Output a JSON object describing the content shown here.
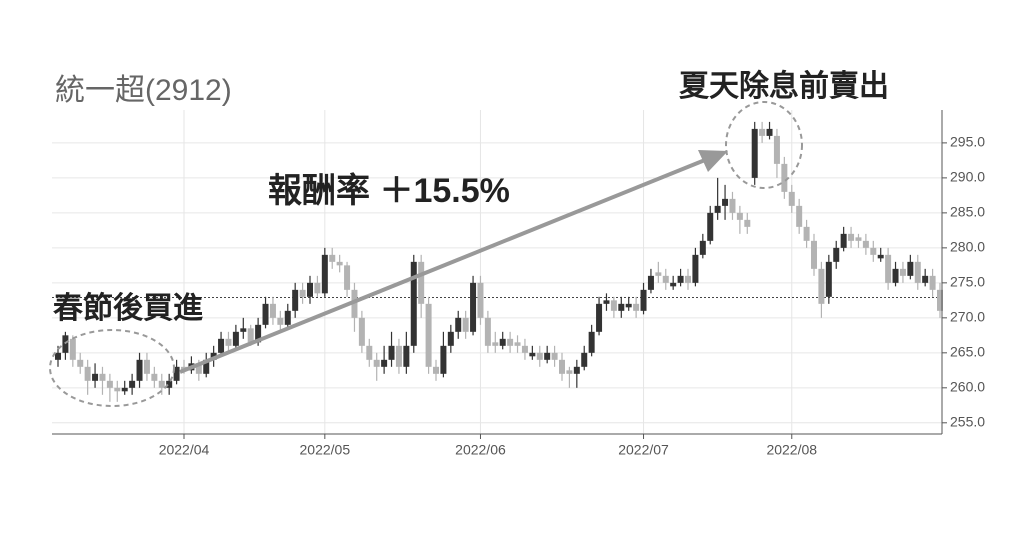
{
  "chart_data": {
    "type": "candlestick",
    "title": "統一超(2912)",
    "annotations": {
      "buy": "春節後買進",
      "return": "報酬率 ＋15.5%",
      "sell": "夏天除息前賣出"
    },
    "categories": [
      null,
      null,
      null,
      null,
      null,
      null,
      null,
      null,
      null,
      null,
      null,
      null,
      null,
      null,
      null,
      null,
      null,
      "2022/04",
      null,
      null,
      null,
      null,
      null,
      null,
      null,
      null,
      null,
      null,
      null,
      null,
      null,
      null,
      null,
      null,
      null,
      null,
      "2022/05",
      null,
      null,
      null,
      null,
      null,
      null,
      null,
      null,
      null,
      null,
      null,
      null,
      null,
      null,
      null,
      null,
      null,
      null,
      null,
      null,
      "2022/06",
      null,
      null,
      null,
      null,
      null,
      null,
      null,
      null,
      null,
      null,
      null,
      null,
      null,
      null,
      null,
      null,
      null,
      null,
      null,
      null,
      null,
      "2022/07",
      null,
      null,
      null,
      null,
      null,
      null,
      null,
      null,
      null,
      null,
      null,
      null,
      null,
      null,
      null,
      null,
      null,
      null,
      null,
      "2022/08",
      null,
      null,
      null,
      null,
      null,
      null,
      null,
      null,
      null,
      null,
      null,
      null,
      null,
      null,
      null,
      null,
      null,
      null,
      null,
      null
    ],
    "ohlc": [
      [
        264,
        266,
        263,
        265
      ],
      [
        265,
        268,
        264,
        267.5
      ],
      [
        267,
        267.5,
        263,
        264
      ],
      [
        264,
        265,
        262,
        263
      ],
      [
        263,
        264,
        259,
        261
      ],
      [
        261,
        263.5,
        260,
        262
      ],
      [
        262,
        263,
        259,
        261
      ],
      [
        261,
        262,
        258,
        260
      ],
      [
        260,
        261,
        258,
        259.5
      ],
      [
        259.5,
        261,
        259,
        260
      ],
      [
        260,
        262,
        259,
        261
      ],
      [
        261,
        265,
        260,
        264
      ],
      [
        264,
        265,
        261,
        262
      ],
      [
        262,
        263,
        260,
        261
      ],
      [
        261,
        262,
        259,
        260
      ],
      [
        260,
        262,
        259,
        261
      ],
      [
        261,
        264,
        260.5,
        263
      ],
      [
        263,
        264,
        262,
        262.5
      ],
      [
        262.5,
        264.5,
        262,
        263.5
      ],
      [
        263.5,
        264,
        261,
        262
      ],
      [
        262,
        265,
        261.5,
        264
      ],
      [
        264,
        266,
        263,
        265
      ],
      [
        265,
        268,
        264.5,
        267
      ],
      [
        267,
        268,
        265,
        266
      ],
      [
        266,
        269,
        265.5,
        268
      ],
      [
        268,
        270,
        267,
        268.5
      ],
      [
        268.5,
        269,
        266,
        266.5
      ],
      [
        266.5,
        270,
        266,
        269
      ],
      [
        269,
        273,
        268.5,
        272
      ],
      [
        272,
        273,
        269,
        270
      ],
      [
        270,
        271,
        268,
        269
      ],
      [
        269,
        272,
        268.5,
        271
      ],
      [
        271,
        275,
        270,
        274
      ],
      [
        274,
        275,
        272,
        273
      ],
      [
        273,
        276,
        272,
        275
      ],
      [
        275,
        276,
        273,
        273.5
      ],
      [
        273.5,
        280,
        273,
        279
      ],
      [
        279,
        280,
        277,
        278
      ],
      [
        278,
        279,
        276.5,
        277.5
      ],
      [
        277.5,
        278,
        273,
        274
      ],
      [
        274,
        275,
        268,
        270
      ],
      [
        270,
        271,
        265,
        266
      ],
      [
        266,
        267,
        263,
        264
      ],
      [
        264,
        265,
        261,
        263
      ],
      [
        263,
        266,
        262,
        264
      ],
      [
        264,
        268,
        263,
        266
      ],
      [
        266,
        267,
        262,
        263
      ],
      [
        263,
        268,
        262,
        266
      ],
      [
        266,
        279,
        265,
        278
      ],
      [
        278,
        279,
        270,
        272
      ],
      [
        272,
        273,
        262,
        263
      ],
      [
        263,
        264,
        261,
        262
      ],
      [
        262,
        268,
        261.5,
        266
      ],
      [
        266,
        269,
        265,
        268
      ],
      [
        268,
        271,
        267,
        270
      ],
      [
        270,
        271,
        267,
        268
      ],
      [
        268,
        276,
        267.5,
        275
      ],
      [
        275,
        276,
        269,
        270
      ],
      [
        270,
        271,
        265,
        266
      ],
      [
        266.5,
        268,
        265,
        266
      ],
      [
        266,
        268,
        265.5,
        267
      ],
      [
        267,
        268,
        265,
        266
      ],
      [
        266.5,
        267.5,
        265,
        266
      ],
      [
        266,
        267,
        264,
        265
      ],
      [
        264.5,
        266,
        264,
        265
      ],
      [
        265,
        266,
        263,
        264
      ],
      [
        264,
        266,
        263.5,
        265
      ],
      [
        265,
        266,
        263,
        264
      ],
      [
        264,
        265,
        261,
        262
      ],
      [
        262.5,
        263,
        260,
        262
      ],
      [
        262,
        264,
        260,
        263
      ],
      [
        263,
        266,
        262.5,
        265
      ],
      [
        265,
        269,
        264.5,
        268
      ],
      [
        268,
        273,
        267.5,
        272
      ],
      [
        272,
        273.5,
        271,
        272.5
      ],
      [
        272.5,
        273,
        270,
        271
      ],
      [
        271,
        273,
        270,
        272
      ],
      [
        271.5,
        273,
        271,
        272
      ],
      [
        272,
        273,
        270,
        271
      ],
      [
        271,
        275,
        270.5,
        274
      ],
      [
        274,
        277,
        273.5,
        276
      ],
      [
        276.5,
        278,
        275,
        276
      ],
      [
        276,
        277,
        274,
        275
      ],
      [
        274.5,
        276,
        274,
        275
      ],
      [
        275,
        277,
        274.5,
        276
      ],
      [
        276,
        277,
        274,
        275
      ],
      [
        275,
        280,
        274.5,
        279
      ],
      [
        279,
        282,
        278.5,
        281
      ],
      [
        281,
        286,
        280.5,
        285
      ],
      [
        285,
        290,
        284,
        286
      ],
      [
        286,
        289,
        284,
        287
      ],
      [
        287,
        288,
        284,
        285
      ],
      [
        285,
        286,
        282,
        284
      ],
      [
        284,
        285,
        282,
        283
      ],
      [
        290,
        298,
        289,
        297
      ],
      [
        297,
        298,
        295,
        296
      ],
      [
        296,
        298,
        295.5,
        297
      ],
      [
        296,
        297,
        290,
        292
      ],
      [
        292,
        293,
        287,
        288
      ],
      [
        288,
        289,
        285,
        286
      ],
      [
        286,
        287,
        282,
        283
      ],
      [
        283,
        284,
        280,
        281
      ],
      [
        281,
        282,
        276,
        277
      ],
      [
        277,
        278,
        270,
        272
      ],
      [
        273,
        279,
        272,
        278
      ],
      [
        278,
        281,
        277,
        280
      ],
      [
        280,
        283,
        279.5,
        282
      ],
      [
        282,
        283,
        280,
        281
      ],
      [
        281.5,
        282,
        280,
        281
      ],
      [
        281,
        282,
        279,
        280
      ],
      [
        280,
        281,
        278,
        279
      ],
      [
        278.5,
        280,
        278,
        279
      ],
      [
        279,
        280,
        274,
        275
      ],
      [
        275,
        278,
        274.5,
        277
      ],
      [
        277,
        278,
        275,
        276
      ],
      [
        276,
        279,
        275.5,
        278
      ],
      [
        278,
        279,
        274,
        275
      ],
      [
        275,
        277,
        274.5,
        276
      ],
      [
        276,
        277,
        273,
        274
      ],
      [
        274,
        275,
        270,
        271
      ]
    ],
    "up_color": "#333333",
    "down_color": "#b3b3b3",
    "reference_line": 272.9,
    "ylim": [
      253.4,
      299.7
    ],
    "yticks": [
      {
        "value": 255,
        "label": "255.0"
      },
      {
        "value": 260,
        "label": "260.0"
      },
      {
        "value": 265,
        "label": "265.0"
      },
      {
        "value": 270,
        "label": "270.0"
      },
      {
        "value": 275,
        "label": "275.0"
      },
      {
        "value": 280,
        "label": "280.0"
      },
      {
        "value": 285,
        "label": "285.0"
      },
      {
        "value": 290,
        "label": "290.0"
      },
      {
        "value": 295,
        "label": "295.0"
      }
    ],
    "grid": true
  }
}
